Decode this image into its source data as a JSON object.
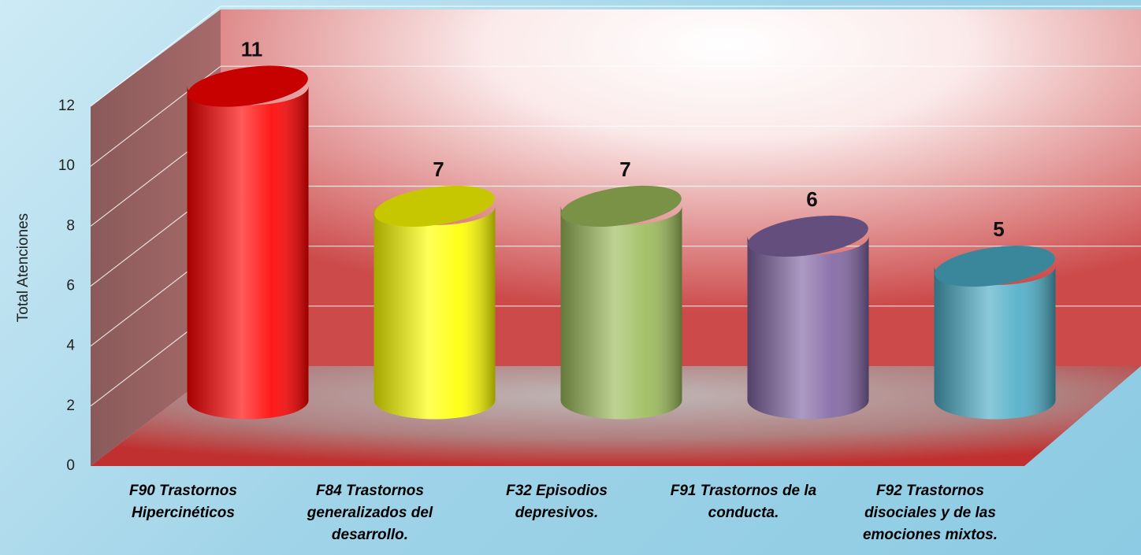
{
  "chart_data": {
    "type": "bar3d",
    "y_label": "Total Atenciones",
    "categories": [
      "F90 Trastornos Hipercinéticos",
      "F84 Trastornos generalizados del desarrollo.",
      "F32 Episodios depresivos.",
      "F91 Trastornos de la conducta.",
      "F92 Trastornos disociales y de las emociones mixtos."
    ],
    "values": [
      11,
      7,
      7,
      6,
      5
    ],
    "colors": [
      "#ff0000",
      "#ffff00",
      "#9bbb59",
      "#8064a2",
      "#4bacc6"
    ],
    "ylim": [
      0,
      12
    ],
    "yticks": [
      0,
      2,
      4,
      6,
      8,
      10,
      12
    ],
    "grid": true
  }
}
